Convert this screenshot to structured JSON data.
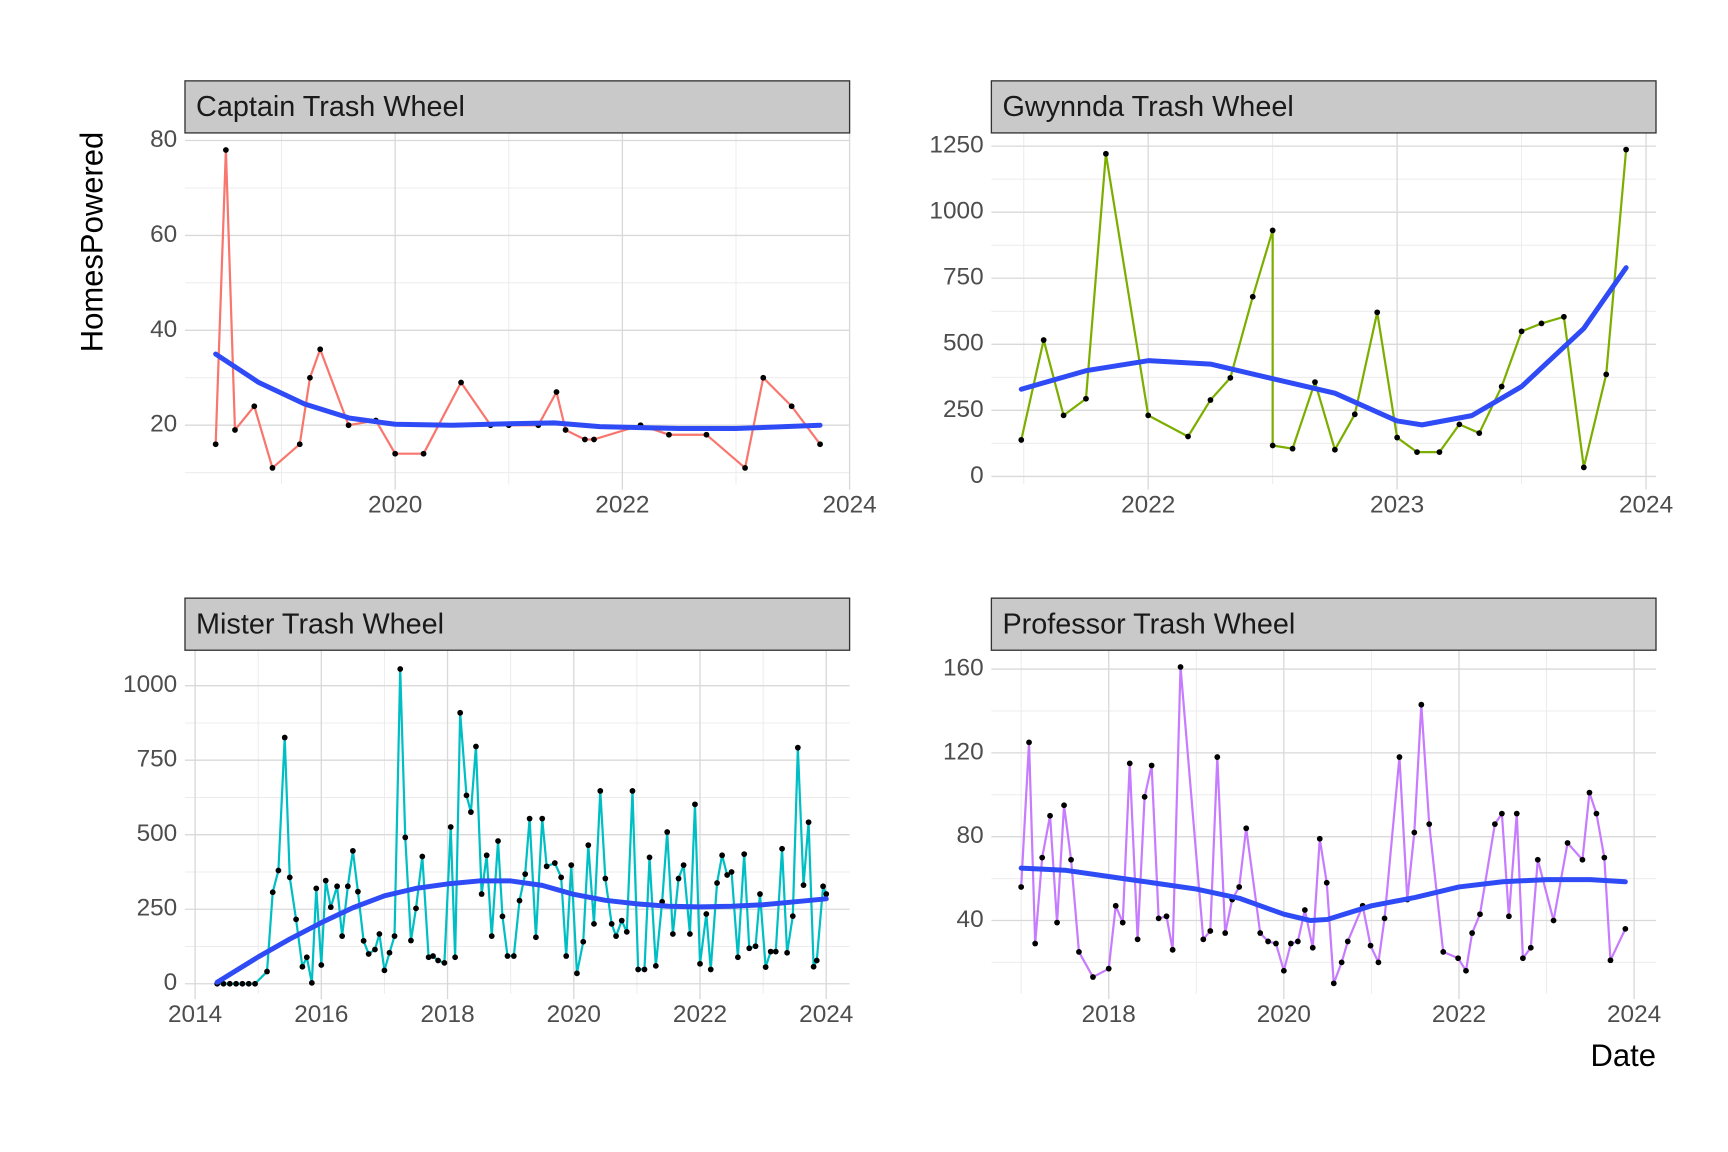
{
  "chart_data": [
    {
      "type": "line",
      "title": "Captain Trash Wheel",
      "y_label": "HomesPowered",
      "x": [
        2018.42,
        2018.51,
        2018.59,
        2018.76,
        2018.92,
        2019.16,
        2019.25,
        2019.34,
        2019.59,
        2019.83,
        2020.0,
        2020.25,
        2020.58,
        2020.84,
        2021.0,
        2021.26,
        2021.42,
        2021.5,
        2021.67,
        2021.75,
        2022.16,
        2022.41,
        2022.74,
        2023.08,
        2023.24,
        2023.49,
        2023.74
      ],
      "series": [
        {
          "color": "#F8766D",
          "values": [
            16,
            78,
            19,
            24,
            11,
            16,
            30,
            36,
            20,
            21,
            14,
            14,
            29,
            20,
            20,
            20,
            27,
            19,
            17,
            17,
            20,
            18,
            18,
            11,
            30,
            24,
            16
          ]
        }
      ],
      "trend": {
        "color": "#2F4BF5",
        "x": [
          2018.42,
          2018.8,
          2019.2,
          2019.6,
          2020.0,
          2020.5,
          2021.0,
          2021.4,
          2021.8,
          2022.5,
          2023.0,
          2023.74
        ],
        "values": [
          35,
          29,
          24.5,
          21.5,
          20.2,
          20,
          20.3,
          20.5,
          19.7,
          19.3,
          19.3,
          20
        ]
      },
      "xlim": [
        2018.15,
        2024.0
      ],
      "xticks": [
        2020,
        2022,
        2024
      ],
      "minor_xticks": [
        2019,
        2021,
        2023
      ],
      "ylim": [
        7.6,
        81.6
      ],
      "yticks": [
        20,
        40,
        60,
        80
      ],
      "minor_yticks": [
        10,
        30,
        50,
        70
      ],
      "grid": true
    },
    {
      "type": "line",
      "title": "Gwynnda Trash Wheel",
      "x": [
        2021.49,
        2021.58,
        2021.66,
        2021.75,
        2021.83,
        2022.0,
        2022.16,
        2022.25,
        2022.33,
        2022.42,
        2022.5,
        2022.5,
        2022.58,
        2022.67,
        2022.75,
        2022.83,
        2022.92,
        2023.0,
        2023.08,
        2023.17,
        2023.25,
        2023.33,
        2023.42,
        2023.5,
        2023.58,
        2023.67,
        2023.75,
        2023.84,
        2023.92
      ],
      "series": [
        {
          "color": "#7CAE00",
          "values": [
            138,
            516,
            231,
            294,
            1221,
            231,
            151,
            289,
            373,
            680,
            931,
            117,
            105,
            357,
            101,
            235,
            621,
            147,
            92,
            92,
            197,
            164,
            340,
            549,
            579,
            604,
            34,
            386,
            1237
          ]
        }
      ],
      "trend": {
        "color": "#2F4BF5",
        "x": [
          2021.49,
          2021.75,
          2022.0,
          2022.25,
          2022.5,
          2022.75,
          2023.0,
          2023.1,
          2023.3,
          2023.5,
          2023.75,
          2023.92
        ],
        "values": [
          330,
          400,
          438,
          425,
          370,
          315,
          210,
          195,
          230,
          340,
          560,
          790
        ]
      },
      "xlim": [
        2021.37,
        2024.04
      ],
      "xticks": [
        2022,
        2023,
        2024
      ],
      "minor_xticks": [
        2021.5,
        2022.5,
        2023.5
      ],
      "ylim": [
        -29,
        1300
      ],
      "yticks": [
        0,
        250,
        500,
        750,
        1000,
        1250
      ],
      "minor_yticks": [
        125,
        375,
        625,
        875,
        1125
      ],
      "grid": true
    },
    {
      "type": "line",
      "title": "Mister Trash Wheel",
      "x": [
        2014.35,
        2014.45,
        2014.55,
        2014.65,
        2014.75,
        2014.85,
        2014.95,
        2015.14,
        2015.23,
        2015.32,
        2015.42,
        2015.5,
        2015.6,
        2015.7,
        2015.77,
        2015.85,
        2015.92,
        2016.0,
        2016.07,
        2016.15,
        2016.25,
        2016.33,
        2016.42,
        2016.5,
        2016.58,
        2016.67,
        2016.75,
        2016.85,
        2016.92,
        2017.0,
        2017.08,
        2017.16,
        2017.25,
        2017.33,
        2017.42,
        2017.5,
        2017.6,
        2017.7,
        2017.77,
        2017.85,
        2017.95,
        2018.05,
        2018.12,
        2018.2,
        2018.3,
        2018.37,
        2018.45,
        2018.54,
        2018.62,
        2018.7,
        2018.8,
        2018.87,
        2018.95,
        2019.05,
        2019.14,
        2019.23,
        2019.3,
        2019.4,
        2019.5,
        2019.57,
        2019.7,
        2019.8,
        2019.88,
        2019.96,
        2020.05,
        2020.15,
        2020.23,
        2020.32,
        2020.42,
        2020.5,
        2020.6,
        2020.67,
        2020.76,
        2020.84,
        2020.93,
        2021.02,
        2021.12,
        2021.2,
        2021.3,
        2021.4,
        2021.48,
        2021.57,
        2021.66,
        2021.74,
        2021.84,
        2021.92,
        2022.0,
        2022.1,
        2022.17,
        2022.27,
        2022.35,
        2022.43,
        2022.5,
        2022.6,
        2022.7,
        2022.78,
        2022.88,
        2022.95,
        2023.04,
        2023.12,
        2023.2,
        2023.3,
        2023.38,
        2023.47,
        2023.55,
        2023.64,
        2023.72,
        2023.8,
        2023.85,
        2023.95,
        2024.0
      ],
      "series": [
        {
          "color": "#00BFC4",
          "values": [
            0,
            0,
            0,
            0,
            0,
            0,
            0,
            41,
            307,
            380,
            826,
            357,
            216,
            57,
            89,
            3,
            320,
            63,
            346,
            257,
            327,
            160,
            327,
            446,
            309,
            144,
            100,
            115,
            167,
            45,
            104,
            160,
            1056,
            491,
            145,
            253,
            427,
            89,
            93,
            78,
            70,
            526,
            89,
            909,
            632,
            576,
            796,
            301,
            431,
            160,
            479,
            226,
            93,
            93,
            279,
            368,
            554,
            156,
            554,
            394,
            405,
            357,
            93,
            398,
            35,
            141,
            465,
            201,
            647,
            353,
            201,
            160,
            212,
            174,
            647,
            48,
            48,
            424,
            60,
            275,
            509,
            167,
            353,
            398,
            167,
            602,
            67,
            234,
            48,
            338,
            431,
            365,
            375,
            89,
            435,
            119,
            126,
            301,
            56,
            108,
            108,
            453,
            104,
            227,
            792,
            331,
            542,
            57,
            78,
            327,
            301
          ]
        }
      ],
      "trend": {
        "color": "#2F4BF5",
        "x": [
          2014.35,
          2015.0,
          2015.5,
          2016.0,
          2016.5,
          2017.0,
          2017.5,
          2018.0,
          2018.5,
          2019.0,
          2019.5,
          2020.0,
          2020.5,
          2021.0,
          2021.5,
          2022.0,
          2022.5,
          2023.0,
          2023.5,
          2024.0
        ],
        "values": [
          5,
          90,
          150,
          205,
          255,
          295,
          320,
          335,
          345,
          345,
          330,
          300,
          280,
          268,
          260,
          258,
          260,
          265,
          275,
          285
        ]
      },
      "xlim": [
        2013.84,
        2024.37
      ],
      "xticks": [
        2014,
        2016,
        2018,
        2020,
        2022,
        2024
      ],
      "minor_xticks": [
        2015,
        2017,
        2019,
        2021,
        2023
      ],
      "ylim": [
        -33,
        1119
      ],
      "yticks": [
        0,
        250,
        500,
        750,
        1000
      ],
      "minor_yticks": [
        125,
        375,
        625,
        875
      ],
      "grid": true
    },
    {
      "type": "line",
      "title": "Professor Trash Wheel",
      "x_label": "Date",
      "x": [
        2017.0,
        2017.09,
        2017.16,
        2017.24,
        2017.33,
        2017.41,
        2017.49,
        2017.57,
        2017.66,
        2017.82,
        2018.0,
        2018.08,
        2018.16,
        2018.24,
        2018.33,
        2018.41,
        2018.49,
        2018.57,
        2018.66,
        2018.73,
        2018.82,
        2019.08,
        2019.16,
        2019.24,
        2019.33,
        2019.41,
        2019.49,
        2019.57,
        2019.73,
        2019.82,
        2019.91,
        2020.0,
        2020.08,
        2020.16,
        2020.24,
        2020.33,
        2020.41,
        2020.49,
        2020.57,
        2020.66,
        2020.73,
        2020.9,
        2020.99,
        2021.08,
        2021.15,
        2021.32,
        2021.41,
        2021.49,
        2021.57,
        2021.66,
        2021.82,
        2021.99,
        2022.08,
        2022.15,
        2022.24,
        2022.41,
        2022.49,
        2022.57,
        2022.66,
        2022.73,
        2022.82,
        2022.9,
        2023.08,
        2023.24,
        2023.41,
        2023.49,
        2023.57,
        2023.66,
        2023.73,
        2023.9
      ],
      "series": [
        {
          "color": "#C77CFF",
          "values": [
            56,
            125,
            29,
            70,
            90,
            39,
            95,
            69,
            25,
            13,
            17,
            47,
            39,
            115,
            31,
            99,
            114,
            41,
            42,
            26,
            161,
            31,
            35,
            118,
            34,
            50,
            56,
            84,
            34,
            30,
            29,
            16,
            29,
            30,
            45,
            27,
            79,
            58,
            10,
            20,
            30,
            47,
            28,
            20,
            41,
            118,
            50,
            82,
            143,
            86,
            25,
            22,
            16,
            34,
            43,
            86,
            91,
            42,
            91,
            22,
            27,
            69,
            40,
            77,
            69,
            101,
            91,
            70,
            21,
            36
          ]
        }
      ],
      "trend": {
        "color": "#2F4BF5",
        "x": [
          2017.0,
          2017.5,
          2018.0,
          2018.5,
          2019.0,
          2019.5,
          2020.0,
          2020.3,
          2020.5,
          2021.0,
          2021.5,
          2022.0,
          2022.5,
          2023.0,
          2023.5,
          2023.9
        ],
        "values": [
          65,
          64,
          61,
          58,
          55,
          50.5,
          43,
          40,
          40.5,
          47,
          51,
          56,
          58.5,
          59.5,
          59.5,
          58.5
        ]
      },
      "xlim": [
        2016.66,
        2024.25
      ],
      "xticks": [
        2018,
        2020,
        2022,
        2024
      ],
      "minor_xticks": [
        2017,
        2019,
        2021,
        2023
      ],
      "ylim": [
        5.1,
        169
      ],
      "yticks": [
        40,
        80,
        120,
        160
      ],
      "minor_yticks": [
        20,
        60,
        100,
        140
      ],
      "grid": true
    }
  ]
}
